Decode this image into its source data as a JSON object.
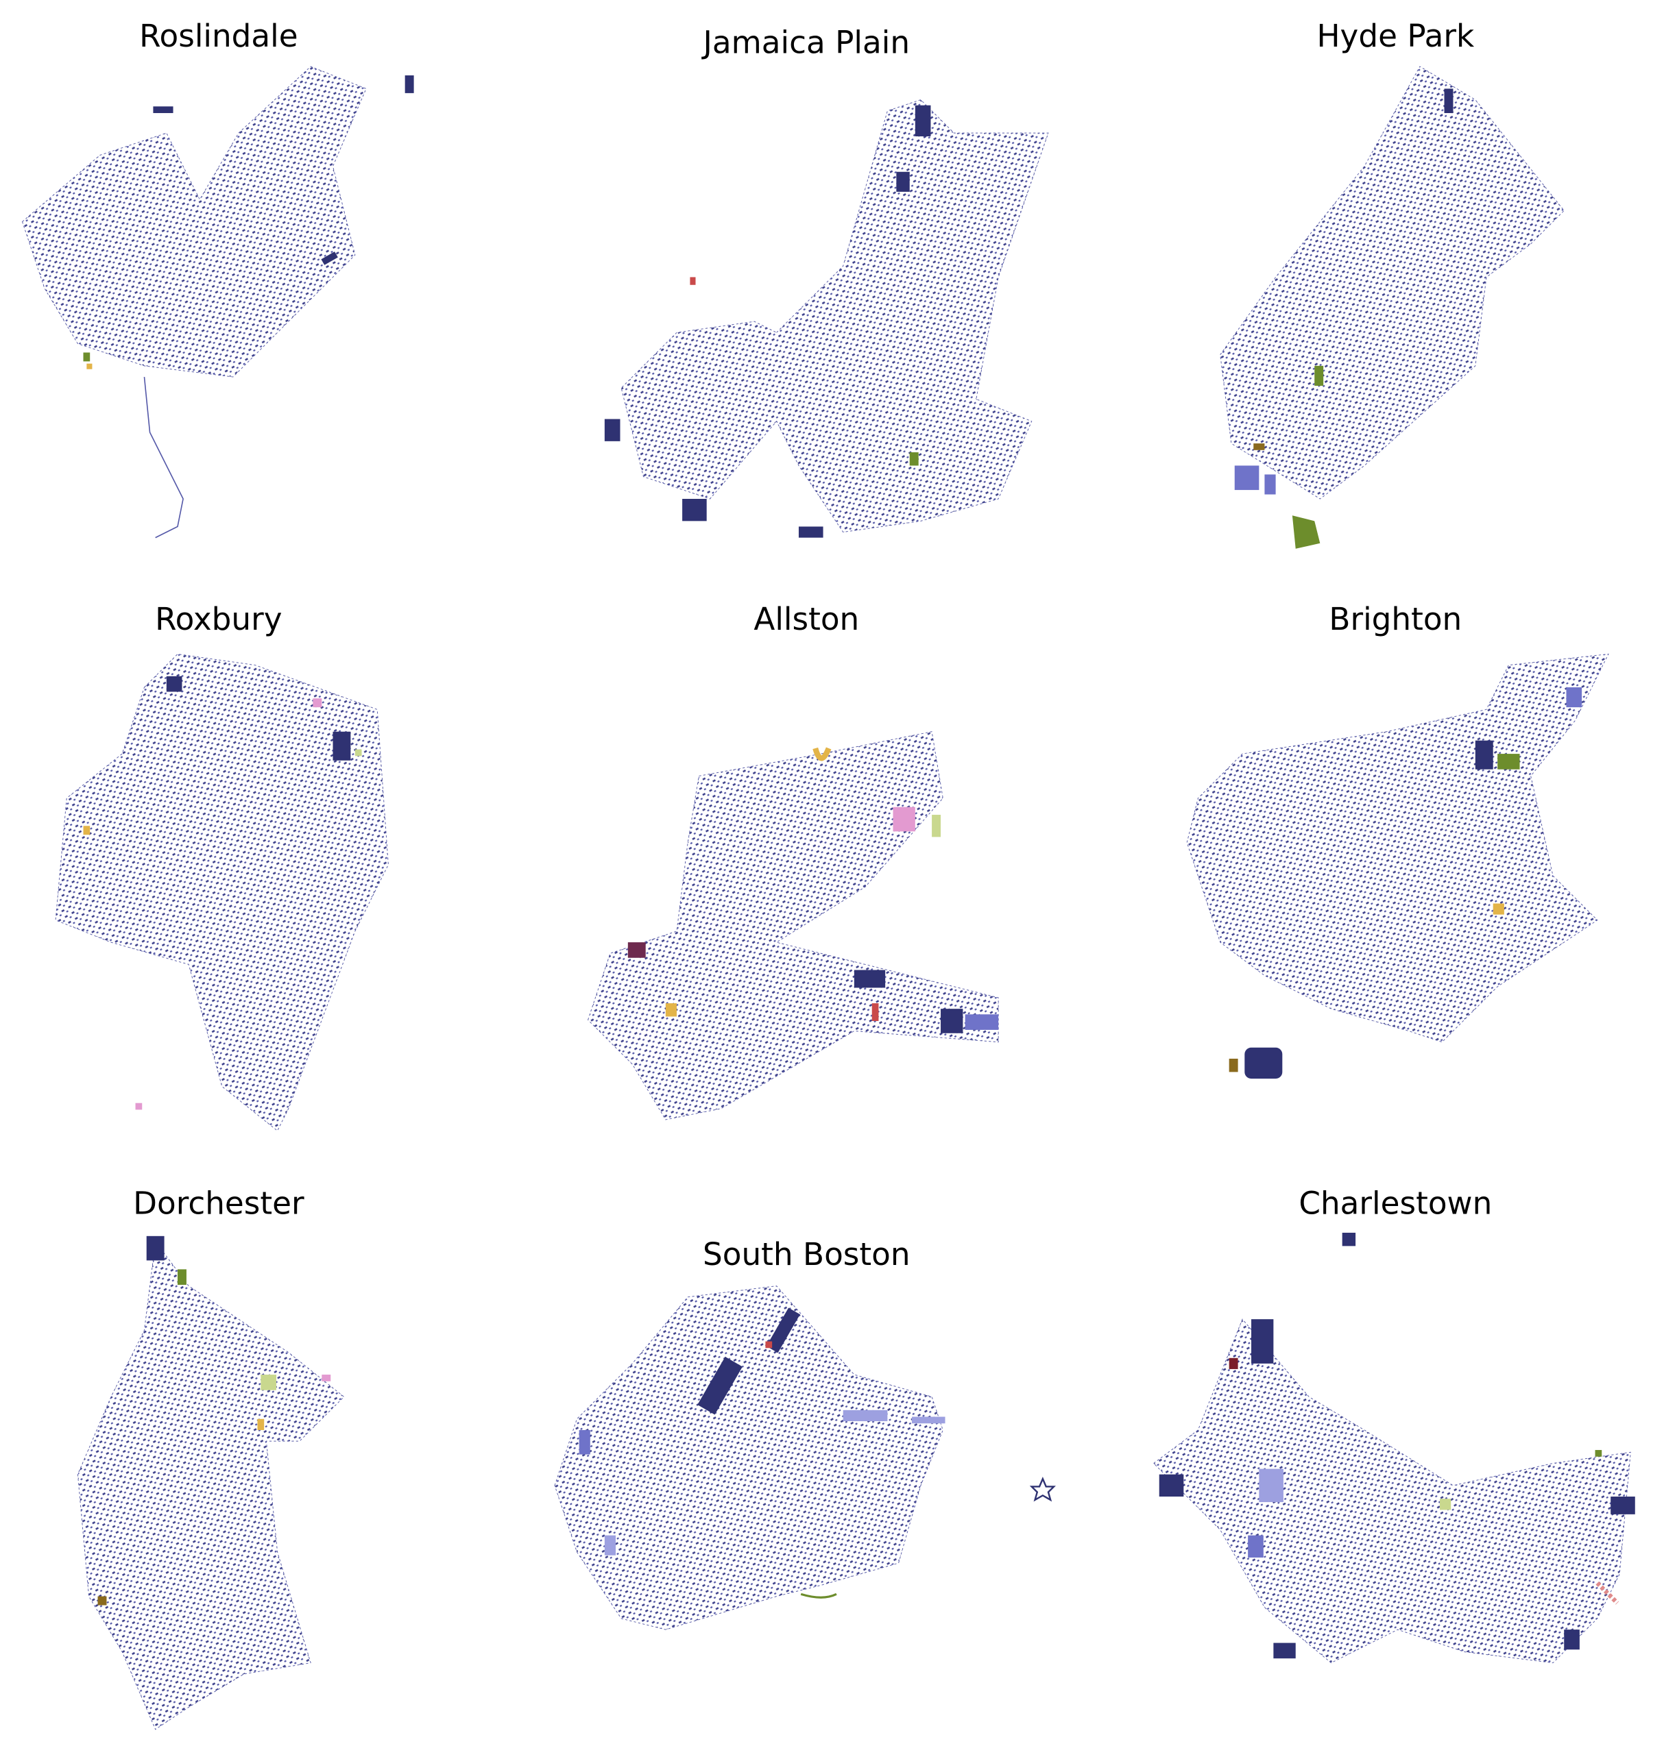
{
  "maps": [
    {
      "title": "Roslindale"
    },
    {
      "title": "Jamaica Plain"
    },
    {
      "title": "Hyde Park"
    },
    {
      "title": "Roxbury"
    },
    {
      "title": "Allston"
    },
    {
      "title": "Brighton"
    },
    {
      "title": "Dorchester"
    },
    {
      "title": "South Boston"
    },
    {
      "title": "Charlestown"
    }
  ]
}
